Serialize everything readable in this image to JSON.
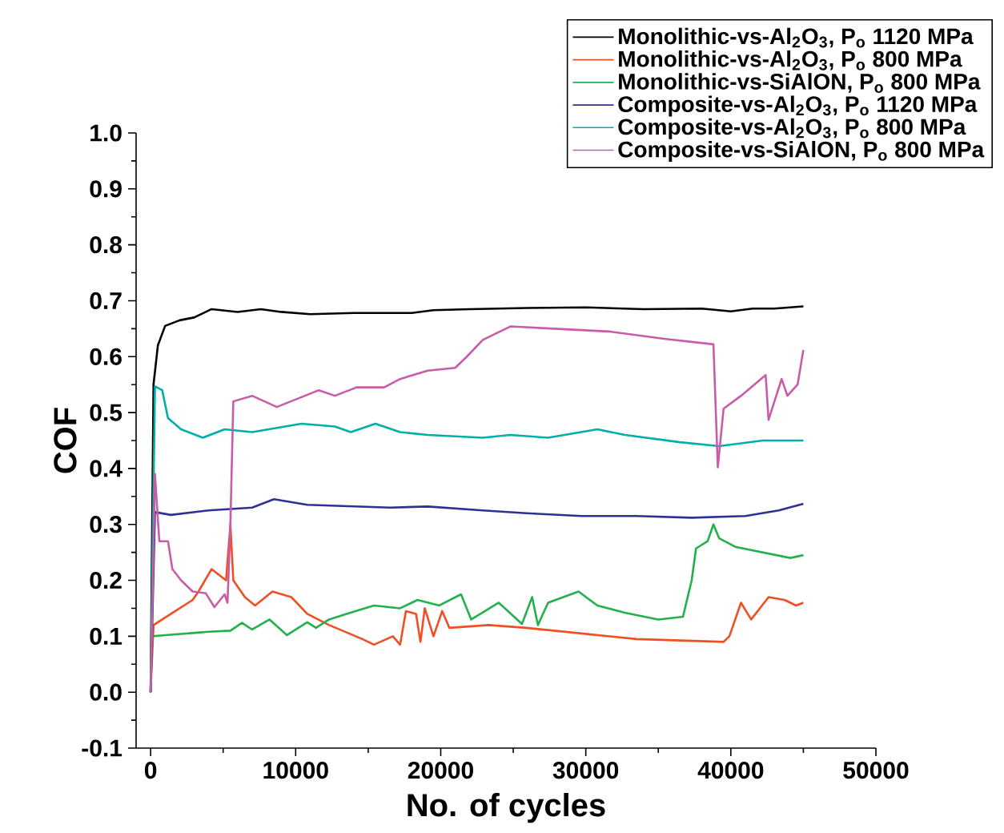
{
  "chart_data": {
    "type": "line",
    "xlabel": "No. of cycles",
    "ylabel": "COF",
    "xlim": [
      -1000,
      50000
    ],
    "ylim": [
      -0.1,
      1.0
    ],
    "xticks": [
      0,
      10000,
      20000,
      30000,
      40000,
      50000
    ],
    "yticks": [
      {
        "value": -0.1,
        "label": "-0.1"
      },
      {
        "value": 0.0,
        "label": "0.0"
      },
      {
        "value": 0.1,
        "label": "0.1"
      },
      {
        "value": 0.2,
        "label": "0.2"
      },
      {
        "value": 0.3,
        "label": "0.3"
      },
      {
        "value": 0.4,
        "label": "0.4"
      },
      {
        "value": 0.5,
        "label": "0.5"
      },
      {
        "value": 0.6,
        "label": "0.6"
      },
      {
        "value": 0.7,
        "label": "0.7"
      },
      {
        "value": 0.8,
        "label": "0.8"
      },
      {
        "value": 0.9,
        "label": "0.9"
      },
      {
        "value": 1.0,
        "label": "1.0"
      }
    ],
    "grid": false,
    "legend": "top right",
    "marker": "none",
    "line_style": "solid",
    "series": [
      {
        "name": "Monolithic-vs-Al$_{2}$O$_{3}$, P$_{o}$ 1120 MPa",
        "color": "#000000",
        "x": [
          0,
          200,
          500,
          1000,
          2000,
          3000,
          4200,
          6000,
          7600,
          9000,
          11000,
          14000,
          18000,
          19500,
          22000,
          26000,
          30000,
          34000,
          38000,
          40000,
          41500,
          43000,
          45000
        ],
        "values": [
          0,
          0.55,
          0.62,
          0.655,
          0.665,
          0.67,
          0.685,
          0.68,
          0.685,
          0.68,
          0.676,
          0.678,
          0.678,
          0.683,
          0.685,
          0.687,
          0.688,
          0.685,
          0.686,
          0.681,
          0.686,
          0.686,
          0.69
        ]
      },
      {
        "name": "Monolithic-vs-Al$_{2}$O$_{3}$, P$_{o}$ 800 MPa",
        "color": "#f04e23",
        "x": [
          0,
          200,
          1400,
          2900,
          3300,
          4200,
          5200,
          5500,
          5700,
          6500,
          7200,
          8400,
          9700,
          10800,
          12300,
          14600,
          15400,
          16700,
          17200,
          17600,
          18300,
          18600,
          18900,
          19500,
          20100,
          20600,
          23300,
          25900,
          29700,
          33500,
          39500,
          39900,
          40700,
          41400,
          42600,
          43700,
          44500,
          45000
        ],
        "values": [
          0,
          0.12,
          0.14,
          0.165,
          0.18,
          0.22,
          0.2,
          0.3,
          0.2,
          0.17,
          0.155,
          0.18,
          0.17,
          0.14,
          0.12,
          0.095,
          0.085,
          0.1,
          0.085,
          0.145,
          0.14,
          0.09,
          0.15,
          0.1,
          0.145,
          0.115,
          0.12,
          0.115,
          0.105,
          0.095,
          0.09,
          0.1,
          0.16,
          0.13,
          0.17,
          0.165,
          0.155,
          0.16
        ]
      },
      {
        "name": "Monolithic-vs-SiAlON, P$_{o}$ 800 MPa",
        "color": "#22b14c",
        "x": [
          0,
          100,
          1000,
          4000,
          5500,
          6300,
          7000,
          8200,
          9400,
          10800,
          11400,
          12300,
          13500,
          15400,
          17200,
          18400,
          19900,
          21400,
          22100,
          24000,
          25600,
          26300,
          26700,
          27400,
          29500,
          30800,
          32700,
          35000,
          36700,
          37300,
          37600,
          38400,
          38800,
          39200,
          40300,
          42200,
          44100,
          45000
        ],
        "values": [
          0,
          0.1,
          0.102,
          0.108,
          0.11,
          0.124,
          0.112,
          0.13,
          0.102,
          0.125,
          0.115,
          0.13,
          0.14,
          0.155,
          0.15,
          0.165,
          0.155,
          0.175,
          0.13,
          0.16,
          0.122,
          0.17,
          0.12,
          0.16,
          0.18,
          0.155,
          0.142,
          0.13,
          0.135,
          0.2,
          0.257,
          0.27,
          0.3,
          0.275,
          0.26,
          0.25,
          0.24,
          0.245
        ]
      },
      {
        "name": "Composite-vs-Al$_{2}$O$_{3}$, P$_{o}$ 1120 MPa",
        "color": "#2e3192",
        "x": [
          0,
          300,
          1400,
          4000,
          7000,
          8500,
          10800,
          16500,
          19100,
          22900,
          25900,
          29700,
          33500,
          37300,
          41000,
          43300,
          45000
        ],
        "values": [
          0,
          0.322,
          0.317,
          0.325,
          0.33,
          0.345,
          0.335,
          0.33,
          0.332,
          0.325,
          0.32,
          0.315,
          0.315,
          0.312,
          0.315,
          0.325,
          0.337
        ]
      },
      {
        "name": "Composite-vs-Al$_{2}$O$_{3}$, P$_{o}$ 800 MPa",
        "color": "#00b0a8",
        "x": [
          0,
          300,
          800,
          1200,
          2100,
          3600,
          5100,
          7000,
          10400,
          12700,
          13800,
          15500,
          17200,
          19100,
          22900,
          24800,
          27400,
          30800,
          32700,
          36500,
          39200,
          42200,
          45000
        ],
        "values": [
          0,
          0.547,
          0.54,
          0.49,
          0.47,
          0.455,
          0.47,
          0.465,
          0.48,
          0.475,
          0.465,
          0.48,
          0.465,
          0.46,
          0.455,
          0.46,
          0.455,
          0.47,
          0.46,
          0.447,
          0.44,
          0.45,
          0.45
        ]
      },
      {
        "name": "Composite-vs-SiAlON, P$_{o}$ 800 MPa",
        "color": "#c95ca8",
        "x": [
          0,
          300,
          600,
          1200,
          1500,
          2100,
          2900,
          3800,
          4400,
          5100,
          5300,
          5500,
          5700,
          7000,
          8700,
          11600,
          12700,
          14200,
          16100,
          17200,
          19100,
          21000,
          21800,
          22900,
          24800,
          27800,
          31600,
          35400,
          38800,
          39100,
          39500,
          40700,
          42400,
          42600,
          43500,
          43900,
          44600,
          45000
        ],
        "values": [
          0,
          0.39,
          0.27,
          0.27,
          0.22,
          0.2,
          0.18,
          0.177,
          0.152,
          0.175,
          0.16,
          0.3,
          0.52,
          0.53,
          0.51,
          0.54,
          0.53,
          0.545,
          0.545,
          0.56,
          0.575,
          0.58,
          0.6,
          0.63,
          0.654,
          0.65,
          0.645,
          0.632,
          0.622,
          0.402,
          0.507,
          0.53,
          0.567,
          0.487,
          0.56,
          0.53,
          0.55,
          0.612
        ]
      }
    ]
  }
}
